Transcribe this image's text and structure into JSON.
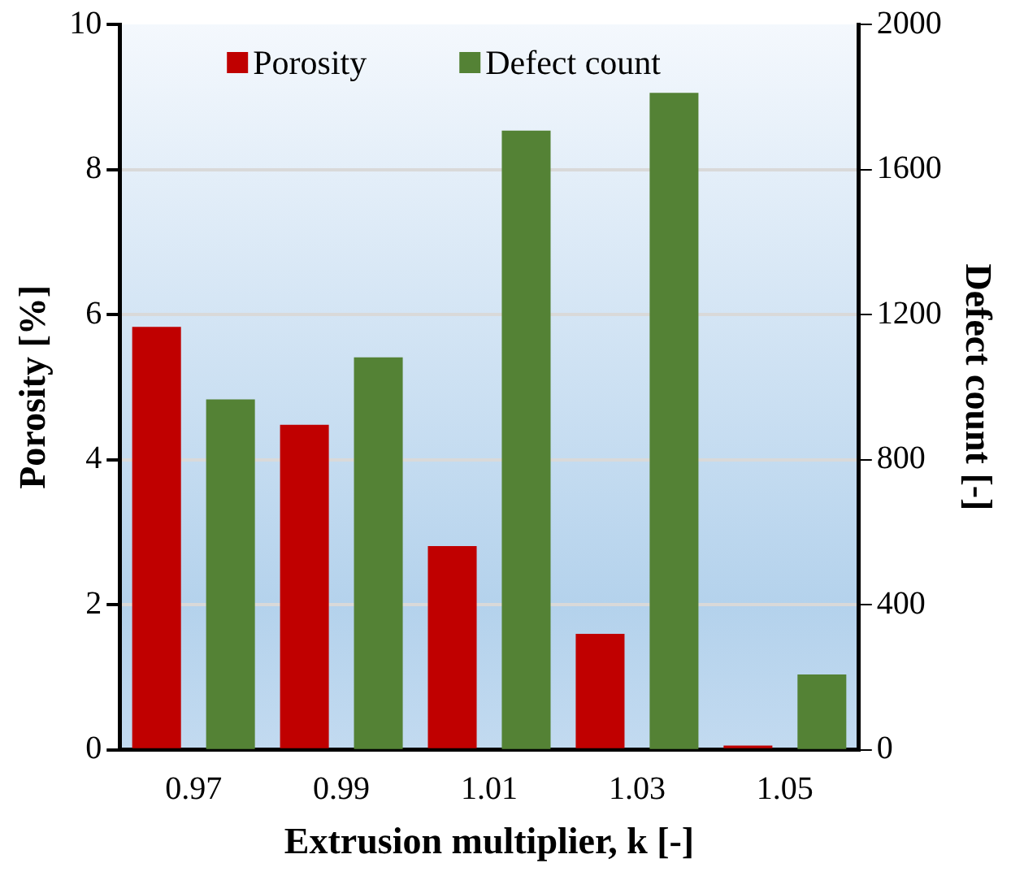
{
  "chart_data": {
    "type": "bar",
    "xlabel": "Extrusion multiplier, k [-]",
    "ylabel": "Porosity [%]",
    "y2label": "Defect count [-]",
    "categories": [
      "0.97",
      "0.99",
      "1.01",
      "1.03",
      "1.05"
    ],
    "series": [
      {
        "name": "Porosity",
        "color": "#c00000",
        "values": [
          5.83,
          4.48,
          2.81,
          1.6,
          0.06
        ]
      },
      {
        "name": "Defect count",
        "color": "#548235",
        "axis": "y2",
        "values": [
          966,
          1082,
          1707,
          1811,
          208
        ]
      }
    ],
    "ylim": [
      0,
      10
    ],
    "yticks": [
      0,
      2,
      4,
      6,
      8,
      10
    ],
    "y2lim": [
      0,
      2000
    ],
    "y2ticks": [
      0,
      400,
      800,
      1200,
      1600,
      2000
    ],
    "grid": "y",
    "legend": "top"
  }
}
